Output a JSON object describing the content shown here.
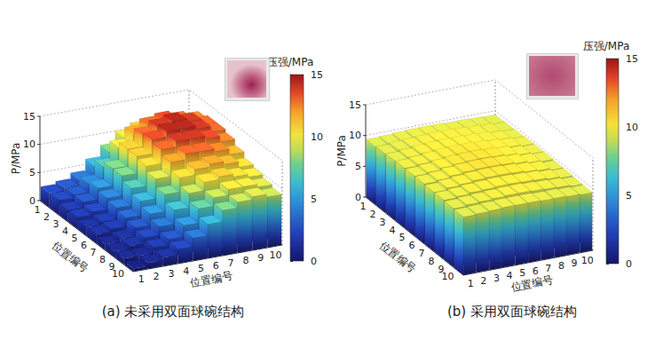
{
  "chart_data": [
    {
      "type": "bar3d",
      "title": "(a) 未采用双面球碗结构",
      "xlabel": "位置编号",
      "ylabel": "位置编号",
      "zlabel": "P/MPa",
      "x": [
        1,
        2,
        3,
        4,
        5,
        6,
        7,
        8,
        9,
        10
      ],
      "y": [
        1,
        2,
        3,
        4,
        5,
        6,
        7,
        8,
        9,
        10
      ],
      "xlim": [
        0.5,
        10.5
      ],
      "ylim": [
        0.5,
        10.5
      ],
      "zlim": [
        0,
        15
      ],
      "xticks": [
        1,
        2,
        3,
        4,
        5,
        6,
        7,
        8,
        9,
        10
      ],
      "yticks": [
        1,
        2,
        3,
        4,
        5,
        6,
        7,
        8,
        9,
        10
      ],
      "zticks": [
        0,
        5,
        10,
        15
      ],
      "grid": true,
      "values": [
        [
          2.5,
          3,
          4,
          6,
          8,
          10,
          11,
          11.5,
          11.5,
          11
        ],
        [
          2.5,
          3,
          4.5,
          7,
          10,
          12,
          13,
          13.5,
          13,
          12.5
        ],
        [
          2,
          3,
          5,
          8,
          11,
          13,
          14,
          14.5,
          14,
          13
        ],
        [
          2,
          2.5,
          4.5,
          8,
          11,
          13.5,
          14.5,
          14.5,
          14,
          13
        ],
        [
          1.5,
          2,
          4,
          7,
          10.5,
          13,
          14,
          14,
          13.5,
          12.5
        ],
        [
          1.5,
          2,
          3.5,
          6,
          9.5,
          12,
          13,
          13,
          12.5,
          11.5
        ],
        [
          1,
          1.5,
          3,
          5,
          8,
          10.5,
          11.5,
          12,
          11.5,
          10.5
        ],
        [
          1,
          1.5,
          2.5,
          4,
          6.5,
          9,
          10.5,
          11,
          10.5,
          10
        ],
        [
          1,
          1,
          2,
          3,
          5,
          7.5,
          9,
          10,
          10,
          9.5
        ],
        [
          0.5,
          1,
          1.5,
          2.5,
          4,
          6,
          8,
          9,
          9.5,
          9
        ]
      ],
      "colorbar": {
        "label": "压强/MPa",
        "range": [
          0,
          15
        ],
        "ticks": [
          0,
          5,
          10,
          15
        ]
      }
    },
    {
      "type": "bar3d",
      "title": "(b) 采用双面球碗结构",
      "xlabel": "位置编号",
      "ylabel": "位置编号",
      "zlabel": "P/MPa",
      "x": [
        1,
        2,
        3,
        4,
        5,
        6,
        7,
        8,
        9,
        10
      ],
      "y": [
        1,
        2,
        3,
        4,
        5,
        6,
        7,
        8,
        9,
        10
      ],
      "xlim": [
        0.5,
        10.5
      ],
      "ylim": [
        0.5,
        10.5
      ],
      "zlim": [
        0,
        15
      ],
      "xticks": [
        1,
        2,
        3,
        4,
        5,
        6,
        7,
        8,
        9,
        10
      ],
      "yticks": [
        1,
        2,
        3,
        4,
        5,
        6,
        7,
        8,
        9,
        10
      ],
      "zticks": [
        0,
        5,
        10,
        15
      ],
      "grid": true,
      "values": [
        [
          9.4,
          9.5,
          9.6,
          9.7,
          9.7,
          9.7,
          9.6,
          9.6,
          9.5,
          9.4
        ],
        [
          9.5,
          9.7,
          9.8,
          9.9,
          10,
          10,
          9.9,
          9.8,
          9.7,
          9.5
        ],
        [
          9.6,
          9.8,
          10,
          10.1,
          10.2,
          10.2,
          10.1,
          10,
          9.8,
          9.6
        ],
        [
          9.7,
          9.9,
          10.1,
          10.3,
          10.4,
          10.4,
          10.3,
          10.1,
          9.9,
          9.7
        ],
        [
          9.7,
          9.9,
          10.2,
          10.4,
          10.5,
          10.5,
          10.4,
          10.2,
          9.9,
          9.7
        ],
        [
          9.7,
          9.9,
          10.2,
          10.4,
          10.5,
          10.5,
          10.4,
          10.2,
          9.9,
          9.7
        ],
        [
          9.6,
          9.9,
          10.1,
          10.3,
          10.4,
          10.4,
          10.3,
          10.1,
          9.9,
          9.6
        ],
        [
          9.6,
          9.8,
          10,
          10.1,
          10.2,
          10.2,
          10.1,
          10,
          9.8,
          9.6
        ],
        [
          9.5,
          9.7,
          9.8,
          9.9,
          10,
          10,
          9.9,
          9.8,
          9.7,
          9.5
        ],
        [
          9.4,
          9.5,
          9.6,
          9.7,
          9.7,
          9.7,
          9.6,
          9.6,
          9.5,
          9.4
        ]
      ],
      "colorbar": {
        "label": "压强/MPa",
        "range": [
          0,
          15
        ],
        "ticks": [
          0,
          5,
          10,
          15
        ]
      }
    }
  ]
}
